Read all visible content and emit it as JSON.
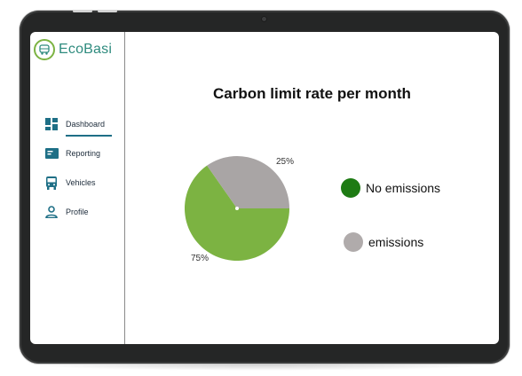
{
  "app": {
    "name": "EcoBasi"
  },
  "sidebar": {
    "items": [
      {
        "label": "Dashboard",
        "icon": "dashboard-icon",
        "active": true
      },
      {
        "label": "Reporting",
        "icon": "report-icon",
        "active": false
      },
      {
        "label": "Vehicles",
        "icon": "bus-icon",
        "active": false
      },
      {
        "label": "Profile",
        "icon": "profile-icon",
        "active": false
      }
    ]
  },
  "colors": {
    "accent": "#1e6f86",
    "brand_text": "#2e8b7e",
    "no_emissions_slice": "#7cb342",
    "emissions_slice": "#a9a5a5",
    "legend_no_emissions": "#1e7b14",
    "legend_emissions": "#b0abab"
  },
  "chart_data": {
    "type": "pie",
    "title": "Carbon limit rate per month",
    "slices": [
      {
        "label": "No emissions",
        "value": 75,
        "display": "75%"
      },
      {
        "label": "emissions",
        "value": 25,
        "display": "25%"
      }
    ],
    "legend": [
      "No emissions",
      "emissions"
    ],
    "legend_placement": "right"
  }
}
